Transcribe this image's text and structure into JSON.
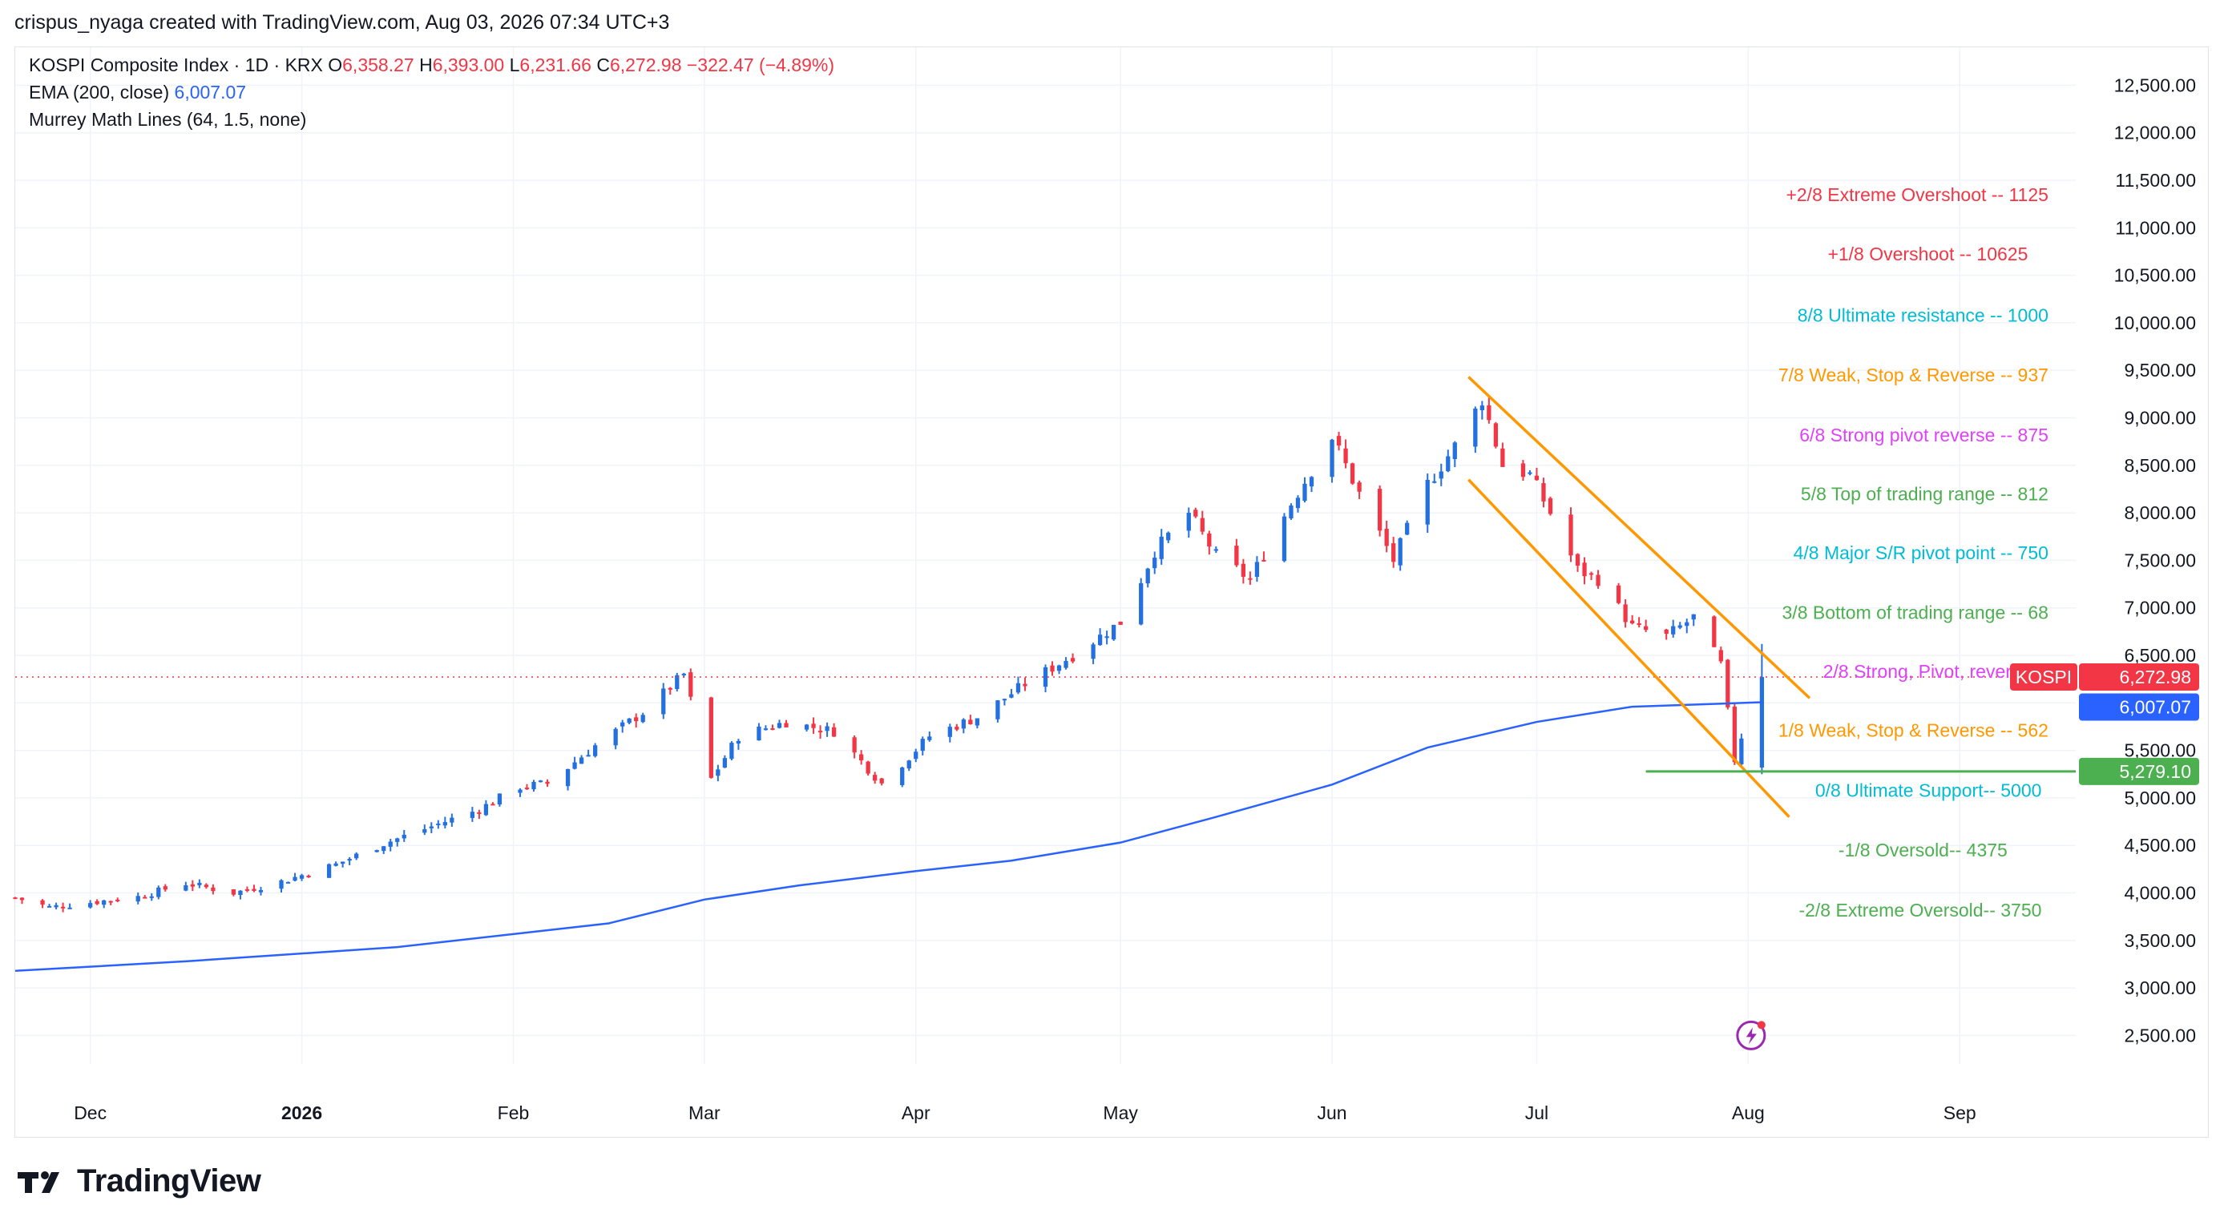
{
  "header": {
    "attribution": "crispus_nyaga created with TradingView.com, Aug 03, 2026 07:34 UTC+3"
  },
  "legend": {
    "title": "KOSPI Composite Index · 1D · KRX",
    "open_k": "O",
    "open_v": "6,358.27",
    "high_k": "H",
    "high_v": "6,393.00",
    "low_k": "L",
    "low_v": "6,231.66",
    "close_k": "C",
    "close_v": "6,272.98",
    "change": "−322.47 (−4.89%)",
    "ema_label": "EMA (200, close)",
    "ema_value": "6,007.07",
    "murrey_label": "Murrey Math Lines (64, 1.5, none)"
  },
  "footer": {
    "brand": "TradingView"
  },
  "colors": {
    "up": "#2470e0",
    "down": "#f23645",
    "ema": "#2962ff",
    "channel": "#ff9800",
    "support_line": "#4caf50",
    "grid": "#f0f3fa",
    "text": "#131722"
  },
  "chart_data": {
    "type": "candlestick",
    "symbol": "KOSPI",
    "ylim": [
      2200,
      12900
    ],
    "y_ticks": [
      2500,
      3000,
      3500,
      4000,
      4500,
      5000,
      5500,
      6000,
      6500,
      7000,
      7500,
      8000,
      8500,
      9000,
      9500,
      10000,
      10500,
      11000,
      11500,
      12000,
      12500
    ],
    "y_tick_labels": [
      "2,500.00",
      "3,000.00",
      "3,500.00",
      "4,000.00",
      "4,500.00",
      "5,000.00",
      "5,500.00",
      "6,000.00",
      "6,500.00",
      "7,000.00",
      "7,500.00",
      "8,000.00",
      "8,500.00",
      "9,000.00",
      "9,500.00",
      "10,000.00",
      "10,500.00",
      "11,000.00",
      "11,500.00",
      "12,000.00",
      "12,500.00"
    ],
    "x_range": [
      "2025-11-20",
      "2026-09-18"
    ],
    "x_ticks": [
      {
        "date": "2025-12-01",
        "label": "Dec",
        "bold": false
      },
      {
        "date": "2026-01-01",
        "label": "2026",
        "bold": true
      },
      {
        "date": "2026-02-01",
        "label": "Feb",
        "bold": false
      },
      {
        "date": "2026-03-01",
        "label": "Mar",
        "bold": false
      },
      {
        "date": "2026-04-01",
        "label": "Apr",
        "bold": false
      },
      {
        "date": "2026-05-01",
        "label": "May",
        "bold": false
      },
      {
        "date": "2026-06-01",
        "label": "Jun",
        "bold": false
      },
      {
        "date": "2026-07-01",
        "label": "Jul",
        "bold": false
      },
      {
        "date": "2026-08-01",
        "label": "Aug",
        "bold": false
      },
      {
        "date": "2026-09-01",
        "label": "Sep",
        "bold": false
      }
    ],
    "close_path": [
      [
        "2025-11-20",
        3950
      ],
      [
        "2025-11-25",
        3850
      ],
      [
        "2025-12-01",
        3900
      ],
      [
        "2025-12-08",
        3960
      ],
      [
        "2025-12-15",
        4100
      ],
      [
        "2025-12-22",
        4000
      ],
      [
        "2025-12-29",
        4120
      ],
      [
        "2026-01-06",
        4300
      ],
      [
        "2026-01-13",
        4520
      ],
      [
        "2026-01-20",
        4700
      ],
      [
        "2026-01-27",
        4880
      ],
      [
        "2026-02-02",
        5120
      ],
      [
        "2026-02-06",
        5150
      ],
      [
        "2026-02-13",
        5550
      ],
      [
        "2026-02-20",
        5900
      ],
      [
        "2026-02-26",
        6300
      ],
      [
        "2026-03-02",
        5200
      ],
      [
        "2026-03-06",
        5650
      ],
      [
        "2026-03-13",
        5800
      ],
      [
        "2026-03-20",
        5700
      ],
      [
        "2026-03-27",
        5150
      ],
      [
        "2026-04-03",
        5650
      ],
      [
        "2026-04-10",
        5850
      ],
      [
        "2026-04-17",
        6200
      ],
      [
        "2026-04-24",
        6500
      ],
      [
        "2026-05-01",
        6850
      ],
      [
        "2026-05-06",
        7600
      ],
      [
        "2026-05-11",
        8000
      ],
      [
        "2026-05-15",
        7550
      ],
      [
        "2026-05-20",
        7300
      ],
      [
        "2026-05-26",
        8100
      ],
      [
        "2026-06-01",
        8800
      ],
      [
        "2026-06-05",
        8200
      ],
      [
        "2026-06-10",
        7500
      ],
      [
        "2026-06-15",
        8300
      ],
      [
        "2026-06-20",
        8800
      ],
      [
        "2026-06-23",
        9200
      ],
      [
        "2026-06-26",
        8500
      ],
      [
        "2026-06-30",
        8400
      ],
      [
        "2026-07-03",
        8000
      ],
      [
        "2026-07-07",
        7400
      ],
      [
        "2026-07-10",
        7300
      ],
      [
        "2026-07-15",
        6800
      ],
      [
        "2026-07-20",
        6700
      ],
      [
        "2026-07-24",
        6900
      ],
      [
        "2026-07-28",
        6400
      ],
      [
        "2026-07-30",
        5400
      ],
      [
        "2026-07-31",
        5650
      ],
      [
        "2026-08-03",
        6273
      ]
    ],
    "last_candle": {
      "date": "2026-08-03",
      "open": 6358.27,
      "high": 6393.0,
      "low": 6231.66,
      "close": 6272.98
    },
    "ema200": {
      "points": [
        [
          "2025-11-20",
          3180
        ],
        [
          "2025-12-15",
          3280
        ],
        [
          "2026-01-15",
          3430
        ],
        [
          "2026-02-15",
          3680
        ],
        [
          "2026-03-01",
          3930
        ],
        [
          "2026-03-15",
          4080
        ],
        [
          "2026-04-01",
          4230
        ],
        [
          "2026-04-15",
          4340
        ],
        [
          "2026-05-01",
          4530
        ],
        [
          "2026-05-15",
          4800
        ],
        [
          "2026-06-01",
          5140
        ],
        [
          "2026-06-15",
          5530
        ],
        [
          "2026-07-01",
          5800
        ],
        [
          "2026-07-15",
          5960
        ],
        [
          "2026-08-03",
          6007
        ]
      ],
      "label": "6,007.07"
    },
    "price_tag": {
      "symbol": "KOSPI",
      "value": 6272.98,
      "label": "6,272.98"
    },
    "support_line": {
      "value": 5279.1,
      "label": "5,279.10",
      "from": "2026-07-17",
      "to": "2026-09-18"
    },
    "channel": {
      "upper": [
        [
          "2026-06-21",
          9430
        ],
        [
          "2026-08-10",
          6050
        ]
      ],
      "lower": [
        [
          "2026-06-21",
          8350
        ],
        [
          "2026-08-07",
          4800
        ]
      ]
    },
    "murrey": [
      {
        "text": "+2/8 Extreme Overshoot --  1125",
        "value": 11350,
        "color": "#f23645",
        "end": "2026-09-14"
      },
      {
        "text": "+1/8 Overshoot --  10625",
        "value": 10725,
        "color": "#f23645",
        "end": "2026-09-11"
      },
      {
        "text": "8/8 Ultimate resistance --  1000",
        "value": 10080,
        "color": "#00bcd4",
        "end": "2026-09-14"
      },
      {
        "text": "7/8 Weak, Stop & Reverse --  937",
        "value": 9450,
        "color": "#ff9800",
        "end": "2026-09-14"
      },
      {
        "text": "6/8 Strong pivot reverse --  875",
        "value": 8820,
        "color": "#e040fb",
        "end": "2026-09-14"
      },
      {
        "text": "5/8 Top of trading range --  812",
        "value": 8200,
        "color": "#4caf50",
        "end": "2026-09-14"
      },
      {
        "text": "4/8 Major S/R pivot point --  750",
        "value": 7580,
        "color": "#00bcd4",
        "end": "2026-09-14"
      },
      {
        "text": "3/8 Bottom of trading range --  68",
        "value": 6950,
        "color": "#4caf50",
        "end": "2026-09-14"
      },
      {
        "text": "2/8 Strong, Pivot, reverse --",
        "value": 6330,
        "color": "#e040fb",
        "end": "2026-09-14"
      },
      {
        "text": "1/8 Weak, Stop & Reverse --  562",
        "value": 5710,
        "color": "#ff9800",
        "end": "2026-09-14"
      },
      {
        "text": "0/8 Ultimate Support--  5000",
        "value": 5080,
        "color": "#00bcd4",
        "end": "2026-09-13"
      },
      {
        "text": "-1/8 Oversold--  4375",
        "value": 4450,
        "color": "#4caf50",
        "end": "2026-09-08"
      },
      {
        "text": "-2/8 Extreme Oversold--  3750",
        "value": 3820,
        "color": "#4caf50",
        "end": "2026-09-13"
      }
    ]
  }
}
